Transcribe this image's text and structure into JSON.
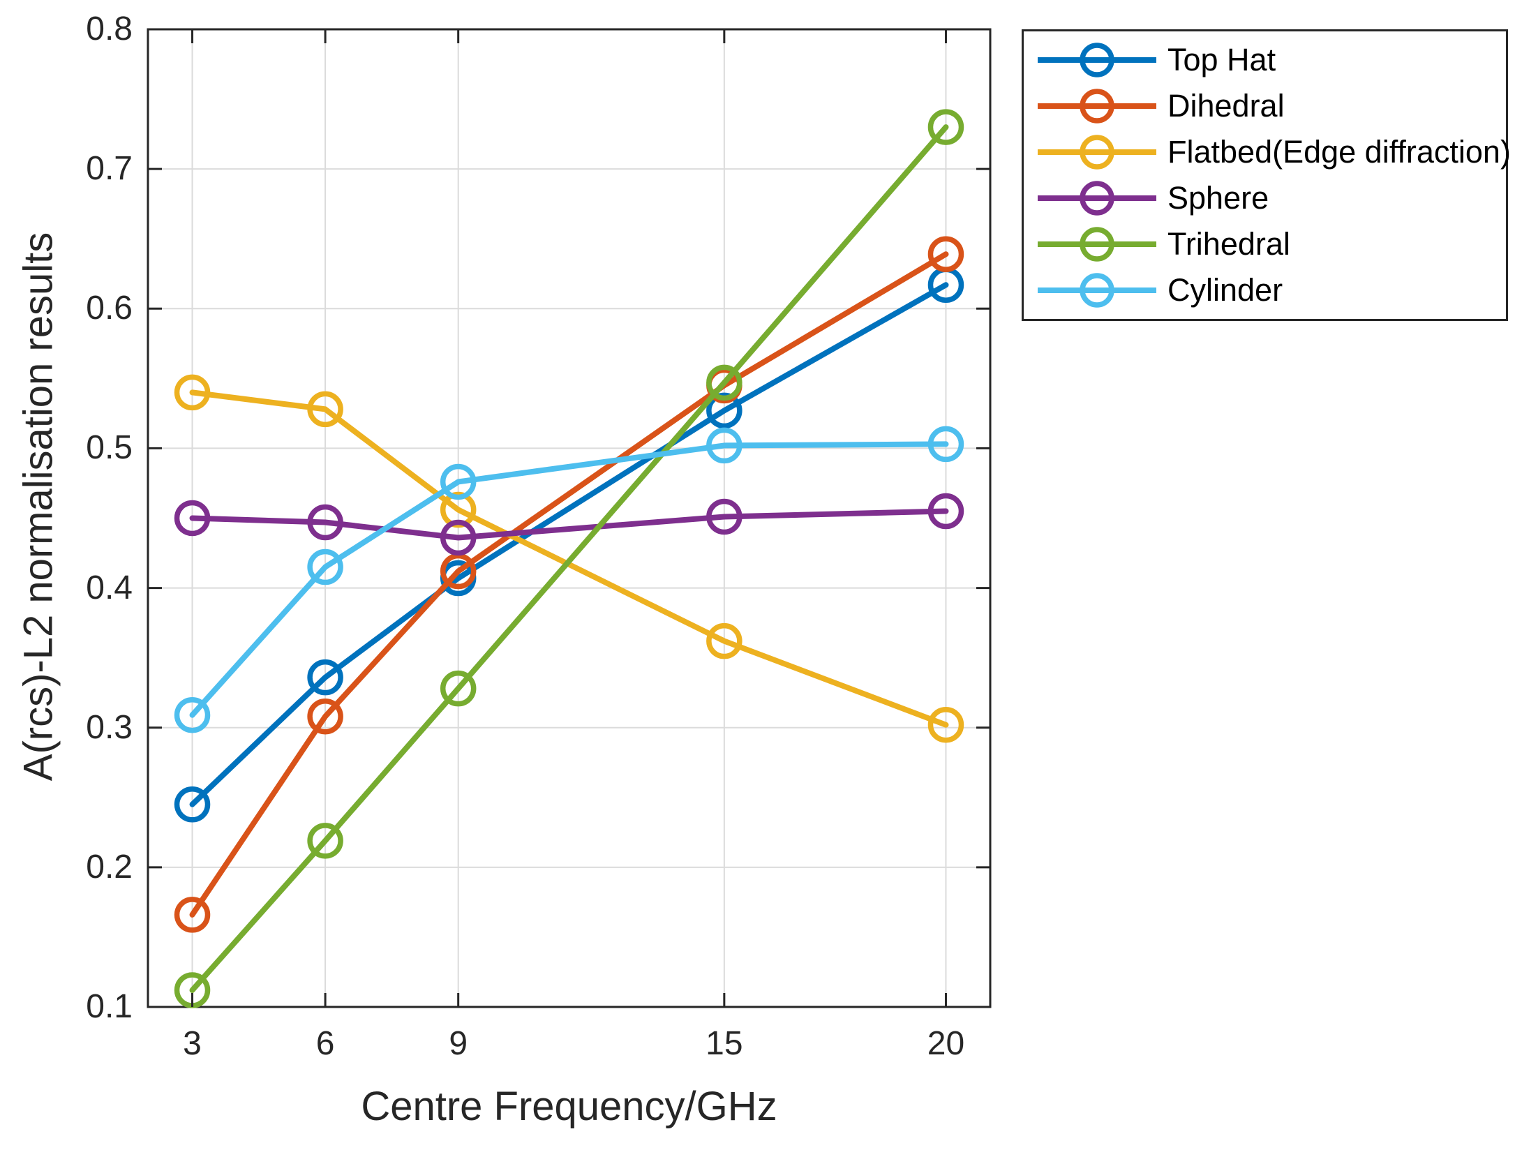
{
  "chart_data": {
    "type": "line",
    "x": [
      3,
      6,
      9,
      15,
      20
    ],
    "series": [
      {
        "name": "Top Hat",
        "color": "#0072BD",
        "values": [
          0.245,
          0.336,
          0.407,
          0.527,
          0.617
        ]
      },
      {
        "name": "Dihedral",
        "color": "#D95319",
        "values": [
          0.166,
          0.308,
          0.412,
          0.545,
          0.639
        ]
      },
      {
        "name": "Flatbed(Edge diffraction)",
        "color": "#EDB120",
        "values": [
          0.54,
          0.528,
          0.456,
          0.362,
          0.302
        ]
      },
      {
        "name": "Sphere",
        "color": "#7E2F8E",
        "values": [
          0.45,
          0.447,
          0.436,
          0.451,
          0.455
        ]
      },
      {
        "name": "Trihedral",
        "color": "#77AC30",
        "values": [
          0.112,
          0.219,
          0.328,
          0.547,
          0.73
        ]
      },
      {
        "name": "Cylinder",
        "color": "#4DBEEE",
        "values": [
          0.309,
          0.415,
          0.476,
          0.502,
          0.503
        ]
      }
    ],
    "xlabel": "Centre Frequency/GHz",
    "ylabel": "A(rcs)-L2 normalisation results",
    "xlim": [
      2,
      21
    ],
    "ylim": [
      0.1,
      0.8
    ],
    "x_ticks": [
      3,
      6,
      9,
      15,
      20
    ],
    "y_ticks": [
      0.1,
      0.2,
      0.3,
      0.4,
      0.5,
      0.6,
      0.7,
      0.8
    ],
    "grid": true,
    "grid_color": "#DBDBDB",
    "axis_color": "#262626",
    "marker": "open-circle",
    "legend_position": "outside-top-right"
  }
}
